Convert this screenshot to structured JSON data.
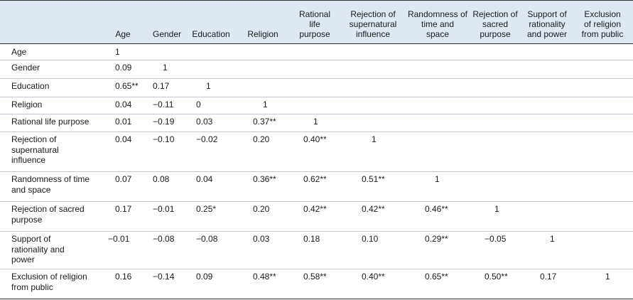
{
  "headers": [
    "Age",
    "Gender",
    "Education",
    "Religion",
    "Rational life purpose",
    "Rejection of supernatural influence",
    "Randomness of time and space",
    "Rejection of sacred purpose",
    "Support of rationality and power",
    "Exclusion of religion from public"
  ],
  "header_lines": [
    [
      "Age"
    ],
    [
      "Gender"
    ],
    [
      "Education"
    ],
    [
      "Religion"
    ],
    [
      "Rational",
      "life",
      "purpose"
    ],
    [
      "Rejection of",
      "supernatural",
      "influence"
    ],
    [
      "Randomness of",
      "time and",
      "space"
    ],
    [
      "Rejection of",
      "sacred",
      "purpose"
    ],
    [
      "Support of",
      "rationality",
      "and power"
    ],
    [
      "Exclusion",
      "of religion",
      "from public"
    ]
  ],
  "rows": [
    {
      "label": "Age",
      "cells": [
        "1"
      ]
    },
    {
      "label": "Gender",
      "cells": [
        "0.09",
        "1"
      ]
    },
    {
      "label": "Education",
      "cells": [
        "0.65**",
        "0.17",
        "1"
      ]
    },
    {
      "label": "Religion",
      "cells": [
        "0.04",
        "−0.11",
        "0",
        "1"
      ]
    },
    {
      "label": "Rational life purpose",
      "cells": [
        "0.01",
        "−0.19",
        "0.03",
        "0.37**",
        "1"
      ]
    },
    {
      "label": "Rejection of\nsupernatural\ninfluence",
      "cells": [
        "0.04",
        "−0.10",
        "−0.02",
        "0.20",
        "0.40**",
        "1"
      ]
    },
    {
      "label": "Randomness of time\nand space",
      "cells": [
        "0.07",
        "0.08",
        "0.04",
        "0.36**",
        "0.62**",
        "0.51**",
        "1"
      ]
    },
    {
      "label": "Rejection of sacred\npurpose",
      "cells": [
        "0.17",
        "−0.01",
        "0.25*",
        "0.20",
        "0.42**",
        "0.42**",
        "0.46**",
        "1"
      ]
    },
    {
      "label": "Support of\nrationality and\npower",
      "cells": [
        "−0.01",
        "−0.08",
        "−0.08",
        "0.03",
        "0.18",
        "0.10",
        "0.29**",
        "−0.05",
        "1"
      ]
    },
    {
      "label": "Exclusion of religion\nfrom public",
      "cells": [
        "0.16",
        "−0.14",
        "0.09",
        "0.48**",
        "0.58**",
        "0.40**",
        "0.65**",
        "0.50**",
        "0.17",
        "1"
      ]
    }
  ]
}
